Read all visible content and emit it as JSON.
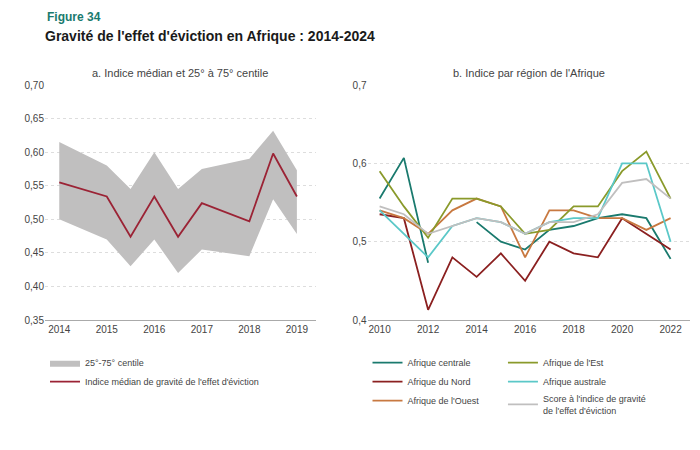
{
  "title": "Gravité de l'effet d'éviction en Afrique : 2014-2024",
  "annotations": [
    "Figure 34"
  ],
  "chart_data": [
    {
      "type": "line",
      "title": "a. Indice médian et 25° à 75° centile",
      "x": [
        2014,
        2015,
        2015.5,
        2016,
        2016.5,
        2017,
        2018,
        2018.5,
        2019
      ],
      "xlim": [
        2013.7,
        2019.4
      ],
      "xticks": [
        2014,
        2015,
        2016,
        2017,
        2018,
        2019
      ],
      "ylim": [
        0.35,
        0.7
      ],
      "yticks": [
        {
          "value": 0.35,
          "label": "0,35"
        },
        {
          "value": 0.4,
          "label": "0,40"
        },
        {
          "value": 0.45,
          "label": "0,45"
        },
        {
          "value": 0.5,
          "label": "0,50"
        },
        {
          "value": 0.55,
          "label": "0,55"
        },
        {
          "value": 0.6,
          "label": "0,60"
        },
        {
          "value": 0.65,
          "label": "0,65"
        },
        {
          "value": 0.7,
          "label": "0,70"
        }
      ],
      "grid": true,
      "legend": "bottom",
      "series": [
        {
          "name": "25°-75° centile",
          "type": "band",
          "color": "#c0bfbf",
          "lower": [
            0.5,
            0.47,
            0.43,
            0.47,
            0.42,
            0.455,
            0.445,
            0.53,
            0.478
          ],
          "upper": [
            0.615,
            0.58,
            0.545,
            0.6,
            0.545,
            0.575,
            0.59,
            0.632,
            0.573
          ]
        },
        {
          "name": "Indice médian de gravité de l'effet d'éviction",
          "type": "line",
          "color": "#9b2335",
          "values": [
            0.555,
            0.534,
            0.474,
            0.534,
            0.474,
            0.524,
            0.497,
            0.598,
            0.534
          ]
        }
      ]
    },
    {
      "type": "line",
      "title": "b. Indice par région de l'Afrique",
      "x": [
        2010,
        2011,
        2012,
        2013,
        2014,
        2015,
        2016,
        2017,
        2018,
        2019,
        2020,
        2021,
        2022
      ],
      "xlim": [
        2009.5,
        2022.8
      ],
      "xticks": [
        2010,
        2012,
        2014,
        2016,
        2018,
        2020,
        2022
      ],
      "ylim": [
        0.4,
        0.7
      ],
      "yticks": [
        {
          "value": 0.4,
          "label": "0,4"
        },
        {
          "value": 0.5,
          "label": "0,5"
        },
        {
          "value": 0.6,
          "label": "0,6"
        },
        {
          "value": 0.7,
          "label": "0,7"
        }
      ],
      "grid": true,
      "legend": "bottom",
      "series": [
        {
          "name": "Afrique centrale",
          "color": "#1a7a6e",
          "values": [
            0.555,
            0.607,
            0.473,
            null,
            0.525,
            0.5,
            0.49,
            0.515,
            0.52,
            0.53,
            0.535,
            0.53,
            0.478
          ]
        },
        {
          "name": "Afrique du Nord",
          "color": "#8b2020",
          "values": [
            0.535,
            0.53,
            0.413,
            0.48,
            0.455,
            0.485,
            0.45,
            0.5,
            0.485,
            0.48,
            0.53,
            0.51,
            0.49
          ]
        },
        {
          "name": "Afrique de l'Ouest",
          "color": "#c87941",
          "values": [
            0.54,
            0.53,
            0.51,
            0.54,
            0.555,
            0.545,
            0.48,
            0.54,
            0.54,
            0.53,
            0.53,
            0.515,
            0.53
          ]
        },
        {
          "name": "Afrique de l'Est",
          "color": "#8a9a2b",
          "values": [
            0.59,
            0.545,
            0.505,
            0.555,
            0.555,
            0.545,
            0.51,
            0.515,
            0.545,
            0.545,
            0.59,
            0.615,
            0.555
          ]
        },
        {
          "name": "Afrique australe",
          "color": "#5bc8c8",
          "values": [
            0.54,
            0.51,
            0.48,
            0.52,
            0.53,
            0.525,
            0.51,
            0.525,
            0.53,
            0.53,
            0.6,
            0.6,
            0.5
          ]
        },
        {
          "name": "Score à l'indice de gravité\nde l'effet d'éviction",
          "color": "#c0bfbf",
          "values": [
            0.545,
            0.535,
            0.51,
            0.52,
            0.53,
            0.525,
            0.51,
            0.525,
            0.525,
            0.535,
            0.575,
            0.58,
            0.555
          ]
        }
      ]
    }
  ]
}
